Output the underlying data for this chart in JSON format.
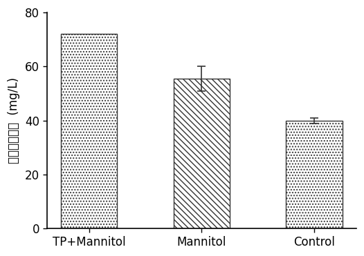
{
  "categories": [
    "TP+Mannitol",
    "Mannitol",
    "Control"
  ],
  "values": [
    72.0,
    55.5,
    40.0
  ],
  "errors": [
    0.0,
    4.5,
    1.0
  ],
  "hatch_patterns": [
    "....",
    "\\\\\\\\",
    "||||"
  ],
  "bar_facecolors": [
    "#d0d0d0",
    "#d8d8d8",
    "#c8c8c8"
  ],
  "bar_edgecolor": "#333333",
  "ylabel_chinese": "岩藻黄质浓度",
  "ylabel_unit": "(mg/L)",
  "ylim": [
    0,
    80
  ],
  "yticks": [
    0,
    20,
    40,
    60,
    80
  ],
  "bar_width": 0.5,
  "figsize": [
    5.26,
    3.71
  ],
  "dpi": 100,
  "facecolor": "#ffffff",
  "tick_fontsize": 12,
  "label_fontsize": 12
}
